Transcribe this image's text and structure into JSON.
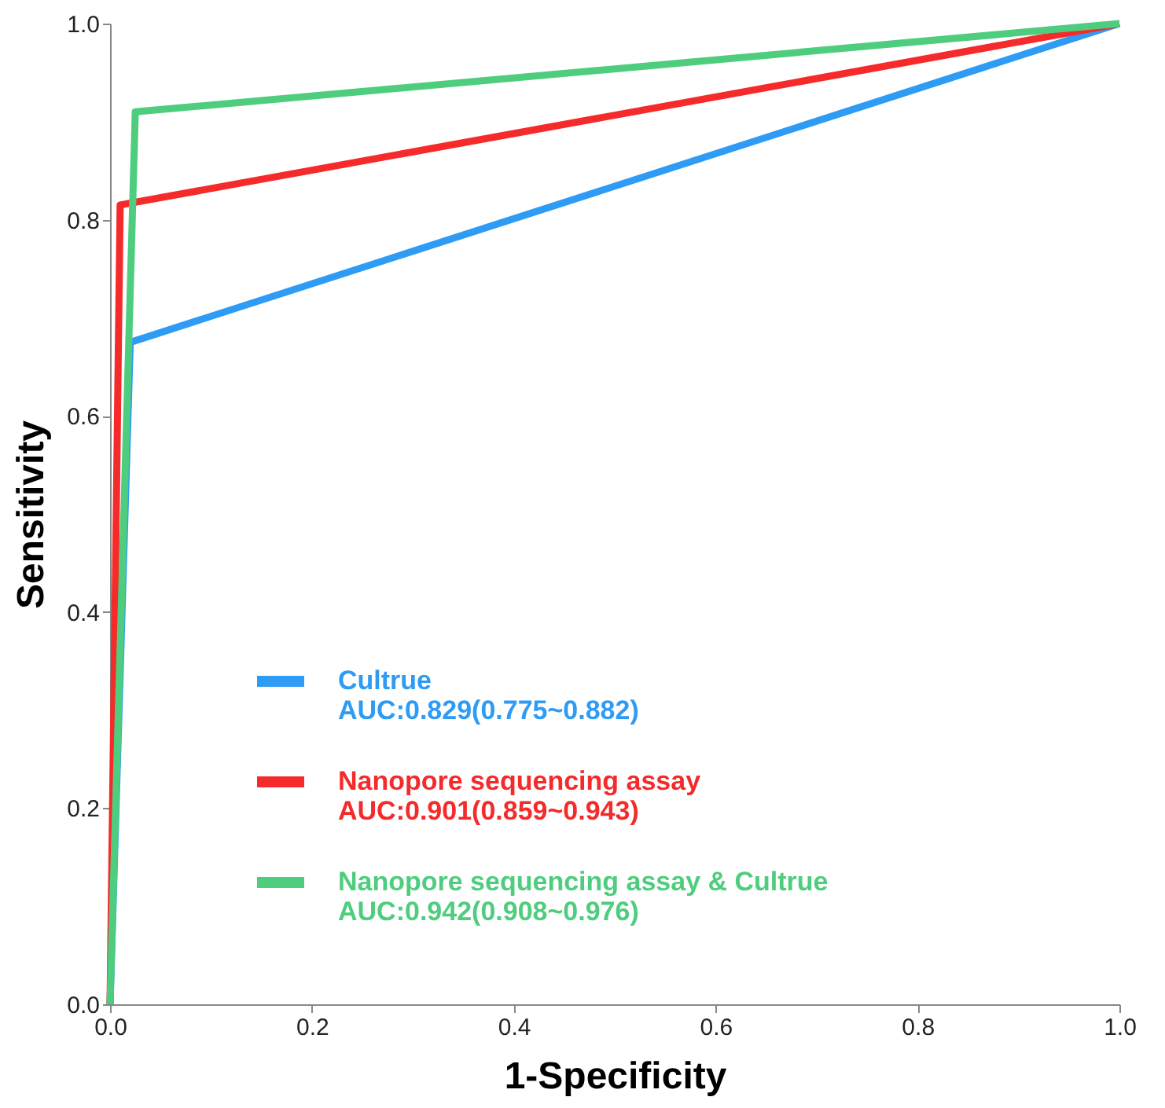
{
  "chart_data": {
    "type": "line",
    "xlabel": "1-Specificity",
    "ylabel": "Sensitivity",
    "xlim": [
      0,
      1
    ],
    "ylim": [
      0,
      1
    ],
    "xticks": [
      {
        "value": 0,
        "label": "0.0"
      },
      {
        "value": 0.2,
        "label": "0.2"
      },
      {
        "value": 0.4,
        "label": "0.4"
      },
      {
        "value": 0.6,
        "label": "0.6"
      },
      {
        "value": 0.8,
        "label": "0.8"
      },
      {
        "value": 1,
        "label": "1.0"
      }
    ],
    "yticks": [
      {
        "value": 0,
        "label": "0.0"
      },
      {
        "value": 0.2,
        "label": "0.2"
      },
      {
        "value": 0.4,
        "label": "0.4"
      },
      {
        "value": 0.6,
        "label": "0.6"
      },
      {
        "value": 0.8,
        "label": "0.8"
      },
      {
        "value": 1,
        "label": "1.0"
      }
    ],
    "grid": false,
    "legend": "bottom left",
    "marker": "none",
    "line_style": "solid",
    "series": [
      {
        "name": "Cultrue",
        "color": "#2e9bf5",
        "x": [
          0,
          0.02,
          1
        ],
        "values": [
          0,
          0.675,
          1
        ]
      },
      {
        "name": "Nanopore sequencing assay",
        "color": "#f52a2a",
        "x": [
          0,
          0.01,
          1
        ],
        "values": [
          0,
          0.815,
          1
        ]
      },
      {
        "name": "Nanopore sequencing assay & Cultrue",
        "color": "#4fcd7e",
        "x": [
          0,
          0.025,
          1
        ],
        "values": [
          0,
          0.91,
          1
        ]
      }
    ],
    "annotations": [
      "AUC:0.829(0.775~0.882)",
      "AUC:0.901(0.859~0.943)",
      "AUC:0.942(0.908~0.976)"
    ]
  }
}
